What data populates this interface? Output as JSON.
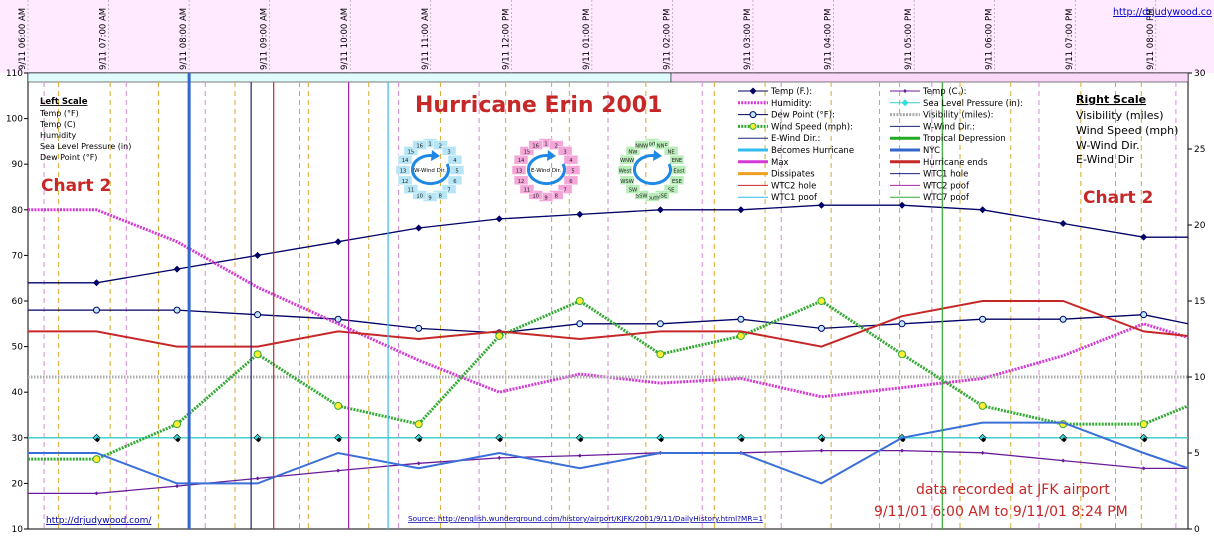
{
  "site_url": "http://drjudywood.co",
  "footer_url": "http://drjudywood.com/",
  "source_text": "Source:  http://english.wunderground.com/history/airport/KJFK/2001/9/11/DailyHistory.html?MR=1",
  "title": "Hurricane Erin 2001",
  "chart_label": "Chart 2",
  "data_note_line1": "data recorded at JFK airport",
  "data_note_line2": "9/11/01 6:00 AM to 9/11/01 8:24 PM",
  "left_scale": {
    "heading": "Left Scale",
    "items": [
      "Temp (°F)",
      "Temp (C)",
      "Humidity",
      "Sea Level Pressure (in)",
      "Dew Point (°F)"
    ]
  },
  "right_scale": {
    "heading": "Right Scale",
    "items": [
      "Visibility (miles)",
      "Wind Speed (mph)",
      "W-Wind Dir.",
      "E-Wind Dir"
    ]
  },
  "legend": [
    {
      "label": "Temp (F.):",
      "color": "#000066",
      "marker": "diamond"
    },
    {
      "label": "Temp (C.):",
      "color": "#6a1b9a",
      "marker": "small"
    },
    {
      "label": "Humidity:",
      "color": "#d63ad6",
      "marker": "dotted"
    },
    {
      "label": "Sea Level Pressure (in):",
      "color": "#33cccc",
      "marker": "cyan-diamond"
    },
    {
      "label": "Dew Point (°F):",
      "color": "#000066",
      "marker": "circle"
    },
    {
      "label": "Visibility (miles):",
      "color": "#aaaaaa",
      "marker": "gray-dotted"
    },
    {
      "label": "Wind Speed (mph):",
      "color": "#33aa33",
      "marker": "green-dotted"
    },
    {
      "label": "W-Wind Dir.:",
      "color": "#1a237e",
      "marker": "line"
    },
    {
      "label": "E-Wind Dir.:",
      "color": "#1a237e",
      "marker": "line"
    },
    {
      "label": "Tropical Depression",
      "color": "#22aa22",
      "marker": "thick"
    },
    {
      "label": "Becomes Hurricane",
      "color": "#33bbee",
      "marker": "thick"
    },
    {
      "label": "NYC",
      "color": "#3366cc",
      "marker": "thick"
    },
    {
      "label": "Max",
      "color": "#d63ad6",
      "marker": "thick"
    },
    {
      "label": "Hurricane ends",
      "color": "#c62828",
      "marker": "thick"
    },
    {
      "label": "Dissipates",
      "color": "#f0a020",
      "marker": "thick"
    },
    {
      "label": "WTC1 hole",
      "color": "#1a237e",
      "marker": "line"
    },
    {
      "label": "WTC2 hole",
      "color": "#c62828",
      "marker": "line"
    },
    {
      "label": "WTC2 poof",
      "color": "#aa22aa",
      "marker": "line"
    },
    {
      "label": "WTC1 poof",
      "color": "#33bbee",
      "marker": "line"
    },
    {
      "label": "WTC7 poof",
      "color": "#33aa33",
      "marker": "line"
    }
  ],
  "compass_w": {
    "label": "W-Wind Dir.",
    "numbers": [
      "1",
      "2",
      "3",
      "4",
      "5",
      "6",
      "7",
      "8",
      "9",
      "10",
      "11",
      "12",
      "13",
      "14",
      "15",
      "16"
    ]
  },
  "compass_e": {
    "label": "E-Wind Dir.",
    "numbers": [
      "1",
      "2",
      "3",
      "4",
      "5",
      "6",
      "7",
      "8",
      "9",
      "10",
      "11",
      "12",
      "13",
      "14",
      "15",
      "16"
    ]
  },
  "compass_dir": {
    "labels": [
      "North",
      "NNE",
      "NE",
      "ENE",
      "East",
      "ESE",
      "SE",
      "SSE",
      "South",
      "SSW",
      "SW",
      "WSW",
      "West",
      "WNW",
      "NW",
      "NNW"
    ]
  },
  "chart_data": {
    "type": "line",
    "x_ticks": [
      "9/11 06:00 AM",
      "9/11 07:00 AM",
      "9/11 08:00 AM",
      "9/11 09:00 AM",
      "9/11 10:00 AM",
      "9/11 11:00 AM",
      "9/11 12:00 PM",
      "9/11 01:00 PM",
      "9/11 02:00 PM",
      "9/11 03:00 PM",
      "9/11 04:00 PM",
      "9/11 05:00 PM",
      "9/11 06:00 PM",
      "9/11 07:00 PM",
      "9/11 08:00 PM"
    ],
    "x_range_hours": [
      6.0,
      20.4
    ],
    "left_ylim": [
      10,
      110
    ],
    "left_yticks": [
      10,
      20,
      30,
      40,
      50,
      60,
      70,
      80,
      90,
      100,
      110
    ],
    "right_ylim": [
      0,
      30
    ],
    "right_yticks": [
      0,
      5,
      10,
      15,
      20,
      25,
      30
    ],
    "series": [
      {
        "name": "Temp (F.)",
        "axis": "left",
        "color": "#000066",
        "style": "diamond",
        "x": [
          6.0,
          6.85,
          7.85,
          8.85,
          9.85,
          10.85,
          11.85,
          12.85,
          13.85,
          14.85,
          15.85,
          16.85,
          17.85,
          18.85,
          19.85,
          20.4
        ],
        "y": [
          64,
          64,
          67,
          70,
          73,
          76,
          78,
          79,
          80,
          80,
          81,
          81,
          80,
          77,
          74,
          74
        ]
      },
      {
        "name": "Dew Point (°F)",
        "axis": "left",
        "color": "#000066",
        "style": "circle",
        "x": [
          6.0,
          6.85,
          7.85,
          8.85,
          9.85,
          10.85,
          11.85,
          12.85,
          13.85,
          14.85,
          15.85,
          16.85,
          17.85,
          18.85,
          19.85,
          20.4
        ],
        "y": [
          58,
          58,
          58,
          57,
          56,
          54,
          53,
          55,
          55,
          56,
          54,
          55,
          56,
          56,
          57,
          55
        ]
      },
      {
        "name": "Humidity",
        "axis": "left",
        "color": "#d63ad6",
        "style": "dotted",
        "x": [
          6.0,
          6.85,
          7.85,
          8.85,
          9.85,
          10.85,
          11.85,
          12.85,
          13.85,
          14.85,
          15.85,
          16.85,
          17.85,
          18.85,
          19.85,
          20.4
        ],
        "y": [
          80,
          80,
          73,
          63,
          55,
          47,
          40,
          44,
          42,
          43,
          39,
          41,
          43,
          48,
          55,
          52
        ]
      },
      {
        "name": "Temp (C.)",
        "axis": "left",
        "color": "#6a1b9a",
        "style": "small",
        "x": [
          6.0,
          6.85,
          7.85,
          8.85,
          9.85,
          10.85,
          11.85,
          12.85,
          13.85,
          14.85,
          15.85,
          16.85,
          17.85,
          18.85,
          19.85,
          20.4
        ],
        "y": [
          17.8,
          17.8,
          19.4,
          21.1,
          22.8,
          24.4,
          25.6,
          26.1,
          26.7,
          26.7,
          27.2,
          27.2,
          26.7,
          25.0,
          23.3,
          23.3
        ]
      },
      {
        "name": "Sea Level Pressure (in)",
        "axis": "left",
        "color": "#33cccc",
        "style": "cyan-diamond",
        "x": [
          6.0,
          6.85,
          7.85,
          8.85,
          9.85,
          10.85,
          11.85,
          12.85,
          13.85,
          14.85,
          15.85,
          16.85,
          17.85,
          18.85,
          19.85,
          20.4
        ],
        "y": [
          30,
          30,
          30,
          30,
          30,
          30,
          30,
          30,
          30,
          30,
          30,
          30,
          30,
          30,
          30,
          30
        ]
      },
      {
        "name": "Visibility (miles)",
        "axis": "right",
        "color": "#aaaaaa",
        "style": "gray-dotted",
        "x": [
          6.0,
          20.4
        ],
        "y": [
          10,
          10
        ]
      },
      {
        "name": "Wind Speed (mph)",
        "axis": "right",
        "color": "#33aa33",
        "style": "green-dotted",
        "x": [
          6.0,
          6.85,
          7.85,
          8.85,
          9.85,
          10.85,
          11.85,
          12.85,
          13.85,
          14.85,
          15.85,
          16.85,
          17.85,
          18.85,
          19.85,
          20.4
        ],
        "y": [
          4.6,
          4.6,
          6.9,
          11.5,
          8.1,
          6.9,
          12.7,
          15.0,
          11.5,
          12.7,
          15.0,
          11.5,
          8.1,
          6.9,
          6.9,
          8.1
        ]
      },
      {
        "name": "W-Wind Dir.",
        "axis": "right",
        "color": "#3a6fd8",
        "style": "plain",
        "x": [
          6.0,
          6.85,
          7.85,
          8.85,
          9.85,
          10.85,
          11.85,
          12.85,
          13.85,
          14.85,
          15.85,
          16.85,
          17.85,
          18.85,
          19.85,
          20.4
        ],
        "y": [
          5,
          5,
          3,
          3,
          5,
          4,
          5,
          4,
          5,
          5,
          3,
          6,
          7,
          7,
          5,
          4
        ]
      },
      {
        "name": "E-Wind Dir.",
        "axis": "right",
        "color": "#c62828",
        "style": "thick",
        "x": [
          6.0,
          6.85,
          7.85,
          8.85,
          9.85,
          10.85,
          11.85,
          12.85,
          13.85,
          14.85,
          15.85,
          16.85,
          17.85,
          18.85,
          19.85,
          20.4
        ],
        "y": [
          13,
          13,
          12,
          12,
          13,
          12.5,
          13,
          12.5,
          13,
          13,
          12,
          14,
          15,
          15,
          13,
          12.7
        ]
      }
    ],
    "event_lines": [
      {
        "name": "WTC1 hole",
        "hour": 8.77,
        "color": "#1a237e"
      },
      {
        "name": "WTC2 hole",
        "hour": 9.05,
        "color": "#c62828"
      },
      {
        "name": "WTC2 poof",
        "hour": 9.98,
        "color": "#aa22aa"
      },
      {
        "name": "WTC1 poof",
        "hour": 10.47,
        "color": "#33bbee"
      },
      {
        "name": "WTC7 poof",
        "hour": 17.35,
        "color": "#33aa33"
      }
    ],
    "marker_line": {
      "name": "NYC",
      "hour": 8.0,
      "color": "#3366cc"
    },
    "dashed_gridlines": [
      {
        "color": "#d8aa30",
        "hours": [
          6.38,
          7.02,
          7.62,
          8.57,
          9.48,
          10.23,
          11.12,
          11.93,
          12.72,
          13.67,
          14.52,
          15.15,
          15.97,
          16.82,
          17.57,
          18.2,
          19.07,
          19.82
        ]
      },
      {
        "color": "#d68ad6",
        "hours": [
          6.2,
          7.22,
          8.2,
          9.37,
          10.6,
          11.6,
          12.5,
          13.2,
          14.37,
          15.35,
          16.57,
          17.22,
          18.55,
          19.5,
          20.25
        ]
      }
    ]
  }
}
